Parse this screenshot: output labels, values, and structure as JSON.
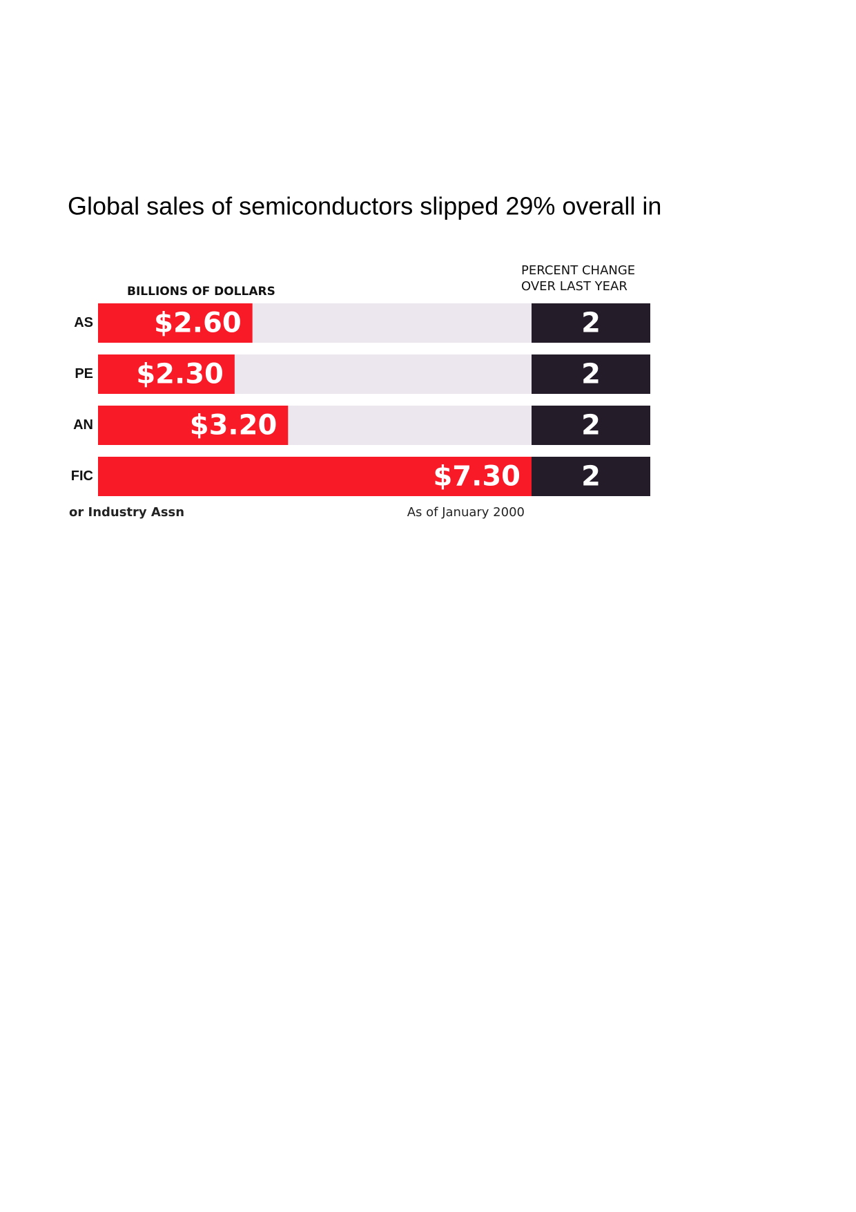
{
  "chart_data": {
    "type": "bar",
    "title": "Global sales of semiconductors slipped 29% overall in",
    "value_axis_label": "BILLIONS OF DOLLARS",
    "categories": [
      "AS",
      "PE",
      "AN",
      "FIC"
    ],
    "values": [
      2.6,
      2.3,
      3.2,
      7.3
    ],
    "value_labels": [
      "$2.60",
      "$2.30",
      "$3.20",
      "$7.30"
    ],
    "color": "#f91a28",
    "track_color": "#ece7ee",
    "xlim": [
      0,
      7.3
    ],
    "change": {
      "header": [
        "PERCENT CHANGE",
        "OVER LAST YEAR"
      ],
      "values": [
        2,
        2,
        2,
        2
      ],
      "color": "#241c28"
    },
    "source": "or Industry Assn",
    "note": "As of January 2000"
  }
}
